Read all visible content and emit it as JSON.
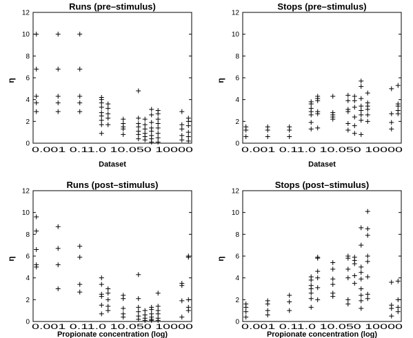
{
  "chart_data": [
    {
      "type": "scatter",
      "title": "Runs (pre–stimulus)",
      "xlabel": "Dataset",
      "ylabel": "η",
      "ylim": [
        0,
        12
      ],
      "yticks": [
        "0",
        "2",
        "4",
        "6",
        "8",
        "10",
        "12"
      ],
      "xtick_text": "0.001 0.11.0 10.050 10000",
      "marker": "+",
      "series": [
        {
          "x": 0.001,
          "y": [
            2.9,
            3.7,
            4.3,
            6.8,
            10.0
          ]
        },
        {
          "x": 0.01,
          "y": [
            2.9,
            3.7,
            4.3,
            6.8,
            10.0
          ]
        },
        {
          "x": 0.1,
          "y": [
            2.9,
            3.7,
            4.3,
            6.8,
            10.0
          ]
        },
        {
          "x": 1.0,
          "y": [
            0.9,
            1.7,
            2.1,
            2.5,
            2.8,
            3.3,
            3.7,
            4.0,
            4.2
          ]
        },
        {
          "x": 2.0,
          "y": [
            1.7,
            2.3,
            2.7,
            3.2,
            3.6
          ]
        },
        {
          "x": 10.0,
          "y": [
            0.8,
            1.3,
            1.5,
            1.8,
            2.2
          ]
        },
        {
          "x": 50.0,
          "y": [
            0.4,
            0.8,
            1.1,
            1.5,
            1.8,
            2.3,
            4.8
          ]
        },
        {
          "x": 100.0,
          "y": [
            0.3,
            0.6,
            0.9,
            1.3,
            1.7,
            2.2
          ]
        },
        {
          "x": 200.0,
          "y": [
            0.1,
            0.4,
            0.7,
            1.1,
            1.4,
            1.9,
            2.6,
            3.1
          ]
        },
        {
          "x": 400.0,
          "y": [
            0.1,
            0.5,
            0.9,
            1.4,
            1.8,
            2.2,
            2.7,
            3.0
          ]
        },
        {
          "x": 5000.0,
          "y": [
            0.3,
            0.7,
            1.3,
            1.7,
            2.9
          ]
        },
        {
          "x": 10000.0,
          "y": [
            0.2,
            0.6,
            1.0,
            1.6,
            2.0,
            2.3
          ]
        }
      ]
    },
    {
      "type": "scatter",
      "title": "Stops (pre–stimulus)",
      "xlabel": "Dataset",
      "ylabel": "η",
      "ylim": [
        0,
        12
      ],
      "yticks": [
        "0",
        "2",
        "4",
        "6",
        "8",
        "10",
        "12"
      ],
      "xtick_text": "0.001 0.11.0 10.050 10000",
      "marker": "+",
      "series": [
        {
          "x": 0.001,
          "y": [
            0.6,
            1.2,
            1.5
          ]
        },
        {
          "x": 0.01,
          "y": [
            0.6,
            1.2,
            1.5
          ]
        },
        {
          "x": 0.1,
          "y": [
            0.6,
            1.2,
            1.5
          ]
        },
        {
          "x": 1.0,
          "y": [
            1.3,
            1.9,
            2.6,
            2.9,
            3.2,
            3.6,
            3.8
          ]
        },
        {
          "x": 2.0,
          "y": [
            1.4,
            2.7,
            2.9,
            3.9,
            4.1,
            4.3
          ]
        },
        {
          "x": 10.0,
          "y": [
            2.2,
            2.4,
            2.6,
            2.8,
            4.3
          ]
        },
        {
          "x": 50.0,
          "y": [
            1.2,
            1.8,
            2.9,
            3.1,
            3.9,
            4.4
          ]
        },
        {
          "x": 100.0,
          "y": [
            0.9,
            1.6,
            2.4,
            3.3,
            3.9,
            4.3
          ]
        },
        {
          "x": 200.0,
          "y": [
            0.8,
            2.1,
            2.6,
            3.0,
            3.4,
            4.1,
            5.2,
            5.7
          ]
        },
        {
          "x": 400.0,
          "y": [
            2.0,
            2.6,
            3.1,
            3.4,
            3.7,
            4.6
          ]
        },
        {
          "x": 5000.0,
          "y": [
            1.3,
            1.9,
            2.7,
            5.0
          ]
        },
        {
          "x": 10000.0,
          "y": [
            2.7,
            3.0,
            3.4,
            3.6,
            5.3
          ]
        }
      ]
    },
    {
      "type": "scatter",
      "title": "Runs (post–stimulus)",
      "xlabel": "Propionate concentration (log)",
      "ylabel": "η",
      "ylim": [
        0,
        12
      ],
      "yticks": [
        "0",
        "2",
        "4",
        "6",
        "8",
        "10",
        "12"
      ],
      "xtick_text": "0.001 0.11.0 10.050 10000",
      "marker": "+",
      "series": [
        {
          "x": 0.001,
          "y": [
            5.0,
            5.2,
            6.6,
            8.3,
            9.6
          ]
        },
        {
          "x": 0.01,
          "y": [
            3.0,
            5.2,
            6.7,
            8.7
          ]
        },
        {
          "x": 0.1,
          "y": [
            2.7,
            3.4,
            5.9,
            6.9
          ]
        },
        {
          "x": 1.0,
          "y": [
            0.7,
            1.5,
            2.3,
            2.5,
            3.4,
            4.0
          ]
        },
        {
          "x": 2.0,
          "y": [
            1.0,
            1.4,
            2.0,
            2.6,
            3.0
          ]
        },
        {
          "x": 10.0,
          "y": [
            0.4,
            0.7,
            1.2,
            2.1,
            2.4
          ]
        },
        {
          "x": 50.0,
          "y": [
            0.2,
            0.5,
            0.9,
            1.3,
            2.1,
            4.3
          ]
        },
        {
          "x": 100.0,
          "y": [
            0.1,
            0.3,
            0.6,
            1.0
          ]
        },
        {
          "x": 200.0,
          "y": [
            0.1,
            0.2,
            0.4,
            0.7,
            1.1,
            1.3
          ]
        },
        {
          "x": 400.0,
          "y": [
            0.1,
            0.3,
            0.7,
            1.0,
            1.4,
            2.6
          ]
        },
        {
          "x": 5000.0,
          "y": [
            0.4,
            1.9,
            3.3,
            3.5
          ]
        },
        {
          "x": 10000.0,
          "y": [
            1.0,
            1.3,
            2.0,
            5.9,
            6.0
          ]
        }
      ]
    },
    {
      "type": "scatter",
      "title": "Stops (post–stimulus)",
      "xlabel": "Propionate concentration (log)",
      "ylabel": "η",
      "ylim": [
        0,
        12
      ],
      "yticks": [
        "0",
        "2",
        "4",
        "6",
        "8",
        "10",
        "12"
      ],
      "xtick_text": "0.001 0.11.0 10.050 10000",
      "marker": "+",
      "series": [
        {
          "x": 0.001,
          "y": [
            0.4,
            0.9,
            1.3,
            1.6
          ]
        },
        {
          "x": 0.01,
          "y": [
            0.6,
            1.0,
            1.6,
            1.9
          ]
        },
        {
          "x": 0.1,
          "y": [
            1.0,
            1.8,
            2.4
          ]
        },
        {
          "x": 1.0,
          "y": [
            1.3,
            2.1,
            2.6,
            3.0,
            3.3,
            3.8,
            4.1
          ]
        },
        {
          "x": 2.0,
          "y": [
            2.0,
            3.1,
            4.0,
            4.6,
            5.8,
            5.9
          ]
        },
        {
          "x": 10.0,
          "y": [
            2.3,
            2.6,
            3.4,
            3.9,
            4.8,
            5.4
          ]
        },
        {
          "x": 50.0,
          "y": [
            1.6,
            2.0,
            4.0,
            4.8,
            5.8,
            6.0
          ]
        },
        {
          "x": 100.0,
          "y": [
            3.5,
            4.2,
            5.3,
            5.6,
            5.9
          ]
        },
        {
          "x": 200.0,
          "y": [
            1.2,
            1.9,
            2.4,
            3.0,
            3.9,
            4.5,
            5.0,
            7.0,
            8.6
          ]
        },
        {
          "x": 400.0,
          "y": [
            2.1,
            2.5,
            4.1,
            5.5,
            6.0,
            7.9,
            8.5,
            10.1
          ]
        },
        {
          "x": 5000.0,
          "y": [
            0.5,
            1.2,
            1.5,
            3.6
          ]
        },
        {
          "x": 10000.0,
          "y": [
            0.9,
            1.3,
            2.0,
            3.7
          ]
        }
      ]
    }
  ]
}
